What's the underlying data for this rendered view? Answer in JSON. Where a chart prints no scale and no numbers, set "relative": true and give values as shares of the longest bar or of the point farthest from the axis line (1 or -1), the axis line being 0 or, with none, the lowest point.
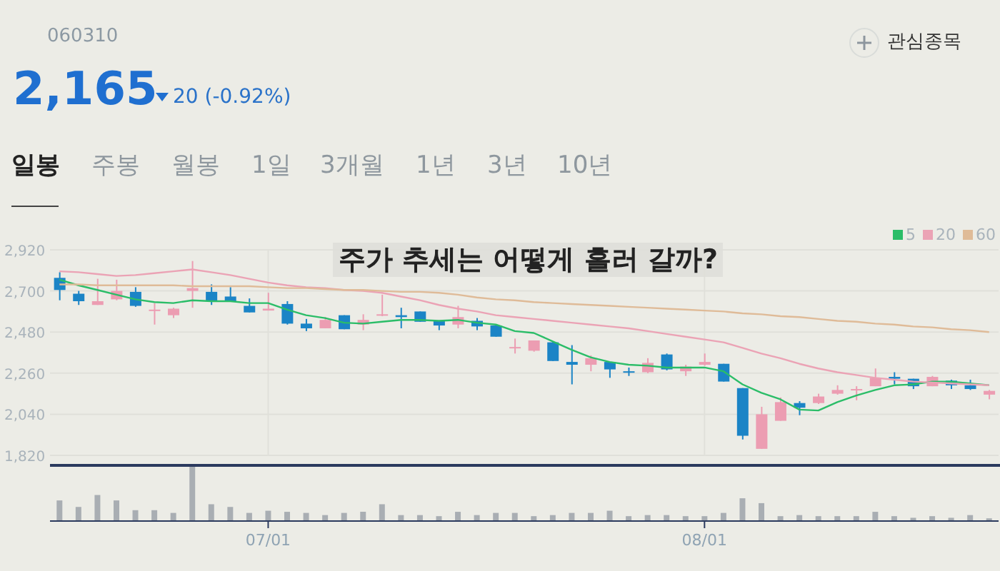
{
  "chart_data": [
    {
      "type": "candlestick",
      "title": "주가 추세는 어떻게 흘러 갈까?",
      "annotations": [
        "060310",
        "2,165",
        "20 (-0.92%)",
        "관심종목",
        "일봉",
        "주봉",
        "월봉",
        "1일",
        "3개월",
        "1년",
        "3년",
        "10년"
      ],
      "categories": [
        null,
        null,
        null,
        null,
        null,
        null,
        null,
        null,
        null,
        null,
        null,
        null,
        null,
        null,
        null,
        null,
        null,
        null,
        null,
        null,
        null,
        null,
        null,
        null,
        null,
        null,
        null,
        null,
        null,
        null,
        null,
        null,
        null,
        null,
        null,
        null,
        null,
        null,
        null,
        null,
        null,
        null,
        null,
        null,
        null,
        null,
        null,
        null,
        null,
        null
      ],
      "ohlc": [
        [
          2770,
          2800,
          2650,
          2705
        ],
        [
          2685,
          2700,
          2625,
          2645
        ],
        [
          2625,
          2765,
          2625,
          2645
        ],
        [
          2655,
          2760,
          2650,
          2700
        ],
        [
          2695,
          2720,
          2615,
          2620
        ],
        [
          2595,
          2635,
          2520,
          2600
        ],
        [
          2570,
          2610,
          2555,
          2605
        ],
        [
          2700,
          2860,
          2610,
          2715
        ],
        [
          2695,
          2735,
          2625,
          2645
        ],
        [
          2670,
          2720,
          2645,
          2645
        ],
        [
          2620,
          2660,
          2585,
          2585
        ],
        [
          2595,
          2690,
          2595,
          2605
        ],
        [
          2630,
          2645,
          2520,
          2525
        ],
        [
          2525,
          2550,
          2485,
          2500
        ],
        [
          2500,
          2560,
          2500,
          2545
        ],
        [
          2570,
          2570,
          2495,
          2495
        ],
        [
          2520,
          2575,
          2490,
          2545
        ],
        [
          2570,
          2680,
          2565,
          2575
        ],
        [
          2570,
          2610,
          2500,
          2560
        ],
        [
          2590,
          2590,
          2535,
          2535
        ],
        [
          2540,
          2540,
          2490,
          2515
        ],
        [
          2520,
          2620,
          2500,
          2560
        ],
        [
          2540,
          2555,
          2490,
          2510
        ],
        [
          2515,
          2515,
          2455,
          2455
        ],
        [
          2395,
          2445,
          2365,
          2400
        ],
        [
          2380,
          2435,
          2375,
          2435
        ],
        [
          2425,
          2430,
          2325,
          2325
        ],
        [
          2320,
          2410,
          2200,
          2305
        ],
        [
          2305,
          2355,
          2270,
          2340
        ],
        [
          2320,
          2320,
          2235,
          2280
        ],
        [
          2270,
          2290,
          2245,
          2265
        ],
        [
          2265,
          2340,
          2260,
          2315
        ],
        [
          2360,
          2365,
          2275,
          2280
        ],
        [
          2270,
          2305,
          2245,
          2295
        ],
        [
          2305,
          2365,
          2300,
          2320
        ],
        [
          2310,
          2310,
          2215,
          2215
        ],
        [
          2180,
          2180,
          1905,
          1925
        ],
        [
          1855,
          2080,
          1855,
          2040
        ],
        [
          2005,
          2130,
          2005,
          2105
        ],
        [
          2100,
          2110,
          2035,
          2075
        ],
        [
          2100,
          2150,
          2095,
          2135
        ],
        [
          2150,
          2195,
          2145,
          2170
        ],
        [
          2170,
          2190,
          2115,
          2175
        ],
        [
          2190,
          2285,
          2190,
          2235
        ],
        [
          2240,
          2265,
          2200,
          2230
        ],
        [
          2230,
          2230,
          2175,
          2190
        ],
        [
          2190,
          2245,
          2190,
          2240
        ],
        [
          2220,
          2225,
          2175,
          2195
        ],
        [
          2195,
          2225,
          2170,
          2175
        ],
        [
          2145,
          2170,
          2120,
          2165
        ]
      ],
      "colors": [
        "#1b84c6",
        "#1b84c6",
        "#ec9db2",
        "#ec9db2",
        "#1b84c6",
        "#ec9db2",
        "#ec9db2",
        "#ec9db2",
        "#1b84c6",
        "#1b84c6",
        "#1b84c6",
        "#ec9db2",
        "#1b84c6",
        "#1b84c6",
        "#ec9db2",
        "#1b84c6",
        "#ec9db2",
        "#ec9db2",
        "#1b84c6",
        "#1b84c6",
        "#1b84c6",
        "#ec9db2",
        "#1b84c6",
        "#1b84c6",
        "#ec9db2",
        "#ec9db2",
        "#1b84c6",
        "#1b84c6",
        "#ec9db2",
        "#1b84c6",
        "#1b84c6",
        "#ec9db2",
        "#1b84c6",
        "#ec9db2",
        "#ec9db2",
        "#1b84c6",
        "#1b84c6",
        "#ec9db2",
        "#ec9db2",
        "#1b84c6",
        "#ec9db2",
        "#ec9db2",
        "#ec9db2",
        "#ec9db2",
        "#1b84c6",
        "#1b84c6",
        "#ec9db2",
        "#1b84c6",
        "#1b84c6",
        "#ec9db2"
      ],
      "series": [
        {
          "name": "5",
          "type": "line",
          "color": "#2bbd68",
          "values": [
            2760,
            2730,
            2705,
            2680,
            2655,
            2640,
            2635,
            2650,
            2645,
            2645,
            2635,
            2635,
            2600,
            2570,
            2555,
            2530,
            2525,
            2535,
            2545,
            2545,
            2540,
            2545,
            2530,
            2520,
            2485,
            2475,
            2430,
            2385,
            2345,
            2320,
            2305,
            2300,
            2290,
            2290,
            2290,
            2270,
            2200,
            2155,
            2120,
            2065,
            2060,
            2105,
            2140,
            2170,
            2195,
            2200,
            2215,
            2215,
            2205,
            2195
          ]
        },
        {
          "name": "20",
          "type": "line",
          "color": "#eba3b5",
          "values": [
            2805,
            2800,
            2790,
            2780,
            2785,
            2795,
            2805,
            2815,
            2800,
            2785,
            2765,
            2745,
            2730,
            2720,
            2715,
            2705,
            2700,
            2690,
            2670,
            2650,
            2625,
            2605,
            2590,
            2570,
            2560,
            2550,
            2540,
            2530,
            2520,
            2510,
            2500,
            2485,
            2470,
            2455,
            2440,
            2425,
            2395,
            2365,
            2340,
            2310,
            2285,
            2265,
            2250,
            2235,
            2225,
            2215,
            2210,
            2205,
            2200,
            2195
          ]
        },
        {
          "name": "60",
          "type": "line",
          "color": "#dfbb98",
          "values": [
            2735,
            2735,
            2730,
            2730,
            2730,
            2730,
            2730,
            2725,
            2725,
            2725,
            2725,
            2720,
            2715,
            2715,
            2710,
            2705,
            2705,
            2700,
            2695,
            2695,
            2690,
            2680,
            2665,
            2655,
            2650,
            2640,
            2635,
            2630,
            2625,
            2620,
            2615,
            2610,
            2605,
            2600,
            2595,
            2590,
            2580,
            2575,
            2565,
            2560,
            2550,
            2540,
            2535,
            2525,
            2520,
            2510,
            2505,
            2495,
            2490,
            2480
          ]
        }
      ],
      "ylim": [
        1820,
        2920
      ],
      "yticks": [
        {
          "value": 1820,
          "label": "1,820"
        },
        {
          "value": 2040,
          "label": "2,040"
        },
        {
          "value": 2260,
          "label": "2,260"
        },
        {
          "value": 2480,
          "label": "2,480"
        },
        {
          "value": 2700,
          "label": "2,700"
        },
        {
          "value": 2920,
          "label": "2,920"
        }
      ],
      "grid": true,
      "legend": "top right",
      "marker": "none",
      "line_style": "solid",
      "tick_labels": "y"
    },
    {
      "type": "bar",
      "relative": true,
      "tick_labels": "x",
      "color": "#a9aeb3",
      "categories": [
        null,
        null,
        null,
        null,
        null,
        null,
        null,
        null,
        null,
        null,
        null,
        "07/01",
        null,
        null,
        null,
        null,
        null,
        null,
        null,
        null,
        null,
        null,
        null,
        null,
        null,
        null,
        null,
        null,
        null,
        null,
        null,
        null,
        null,
        null,
        "08/01",
        null,
        null,
        null,
        null,
        null,
        null,
        null,
        null,
        null,
        null,
        null,
        null,
        null,
        null,
        null
      ],
      "values": [
        0.38,
        0.26,
        0.48,
        0.38,
        0.2,
        0.2,
        0.15,
        1,
        0.31,
        0.26,
        0.15,
        0.19,
        0.17,
        0.15,
        0.11,
        0.15,
        0.17,
        0.31,
        0.11,
        0.11,
        0.09,
        0.17,
        0.11,
        0.15,
        0.15,
        0.09,
        0.11,
        0.15,
        0.15,
        0.19,
        0.09,
        0.11,
        0.11,
        0.09,
        0.09,
        0.15,
        0.42,
        0.33,
        0.09,
        0.11,
        0.09,
        0.09,
        0.09,
        0.17,
        0.09,
        0.06,
        0.09,
        0.06,
        0.11,
        0.05
      ]
    }
  ]
}
